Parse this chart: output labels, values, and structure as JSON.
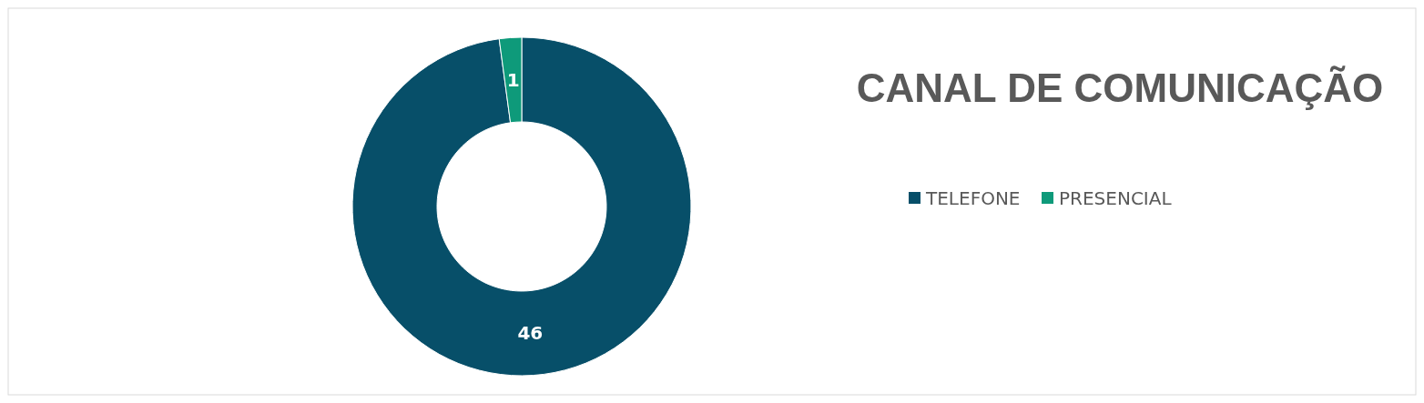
{
  "chart_data": {
    "type": "donut",
    "title": "CANAL DE COMUNICAÇÃO",
    "categories": [
      "TELEFONE",
      "PRESENCIAL"
    ],
    "values": [
      46,
      1
    ],
    "colors": [
      "#074f69",
      "#0e9a7a"
    ],
    "data_labels": true,
    "legend": "right"
  }
}
